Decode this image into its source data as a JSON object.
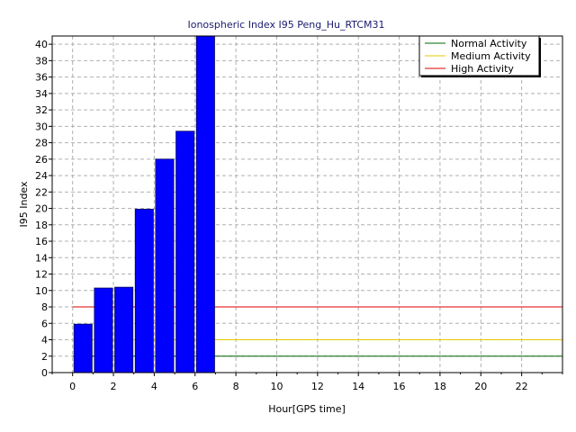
{
  "chart_data": {
    "type": "bar",
    "title": "Ionospheric Index I95 Peng_Hu_RTCM31",
    "xlabel": "Hour[GPS time]",
    "ylabel": "I95 Index",
    "xlim": [
      -1,
      24
    ],
    "ylim": [
      0,
      41
    ],
    "x_ticks": [
      0,
      2,
      4,
      6,
      8,
      10,
      12,
      14,
      16,
      18,
      20,
      22
    ],
    "y_ticks": [
      0,
      2,
      4,
      6,
      8,
      10,
      12,
      14,
      16,
      18,
      20,
      22,
      24,
      26,
      28,
      30,
      32,
      34,
      36,
      38,
      40
    ],
    "grid": true,
    "legend_position": "top-right",
    "bar_color": "#0000ff",
    "bars": [
      {
        "hour": 0,
        "value": 5.9
      },
      {
        "hour": 1,
        "value": 10.3
      },
      {
        "hour": 2,
        "value": 10.4
      },
      {
        "hour": 3,
        "value": 19.9
      },
      {
        "hour": 4,
        "value": 26.0
      },
      {
        "hour": 5,
        "value": 29.4
      },
      {
        "hour": 6,
        "value": 41.0
      }
    ],
    "thresholds": [
      {
        "name": "Normal Activity",
        "value": 2,
        "color": "#006400",
        "x_range": [
          0,
          24
        ]
      },
      {
        "name": "Medium Activity",
        "value": 4,
        "color": "#e6c800",
        "x_range": [
          0,
          24
        ]
      },
      {
        "name": "High Activity",
        "value": 8,
        "color": "#dd0000",
        "x_range": [
          0,
          24
        ]
      }
    ]
  }
}
